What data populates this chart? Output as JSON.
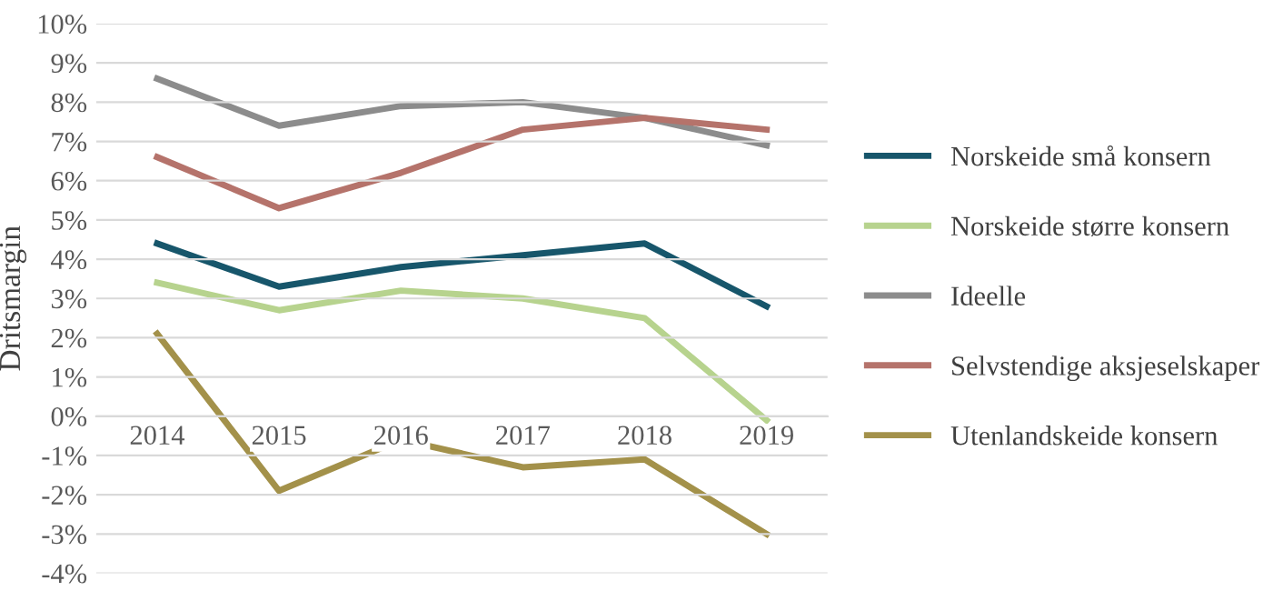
{
  "chart_data": {
    "type": "line",
    "ylabel": "Dritsmargin",
    "categories": [
      "2014",
      "2015",
      "2016",
      "2017",
      "2018",
      "2019"
    ],
    "series": [
      {
        "name": "Norskeide små konsern",
        "color": "#17566b",
        "values": [
          4.4,
          3.3,
          3.8,
          4.1,
          4.4,
          2.8
        ]
      },
      {
        "name": "Norskeide større konsern",
        "color": "#b7d38e",
        "values": [
          3.4,
          2.7,
          3.2,
          3.0,
          2.5,
          -0.1
        ]
      },
      {
        "name": "Ideelle",
        "color": "#8c8c8c",
        "values": [
          8.6,
          7.4,
          7.9,
          8.0,
          7.6,
          6.9
        ]
      },
      {
        "name": "Selvstendige aksjeselskaper",
        "color": "#b5736b",
        "values": [
          6.6,
          5.3,
          6.2,
          7.3,
          7.6,
          7.3
        ]
      },
      {
        "name": "Utenlandskeide konsern",
        "color": "#a3914a",
        "values": [
          2.1,
          -1.9,
          -0.6,
          -1.3,
          -1.1,
          -3.0
        ]
      }
    ],
    "ylim": [
      -4,
      10
    ],
    "yticks": [
      {
        "value": -4,
        "label": "-4%"
      },
      {
        "value": -3,
        "label": "-3%"
      },
      {
        "value": -2,
        "label": "-2%"
      },
      {
        "value": -1,
        "label": "-1%"
      },
      {
        "value": 0,
        "label": "0%"
      },
      {
        "value": 1,
        "label": "1%"
      },
      {
        "value": 2,
        "label": "2%"
      },
      {
        "value": 3,
        "label": "3%"
      },
      {
        "value": 4,
        "label": "4%"
      },
      {
        "value": 5,
        "label": "5%"
      },
      {
        "value": 6,
        "label": "6%"
      },
      {
        "value": 7,
        "label": "7%"
      },
      {
        "value": 8,
        "label": "8%"
      },
      {
        "value": 9,
        "label": "9%"
      },
      {
        "value": 10,
        "label": "10%"
      }
    ],
    "grid": "y",
    "legend": "right",
    "marker": "none",
    "line_style": "solid"
  }
}
